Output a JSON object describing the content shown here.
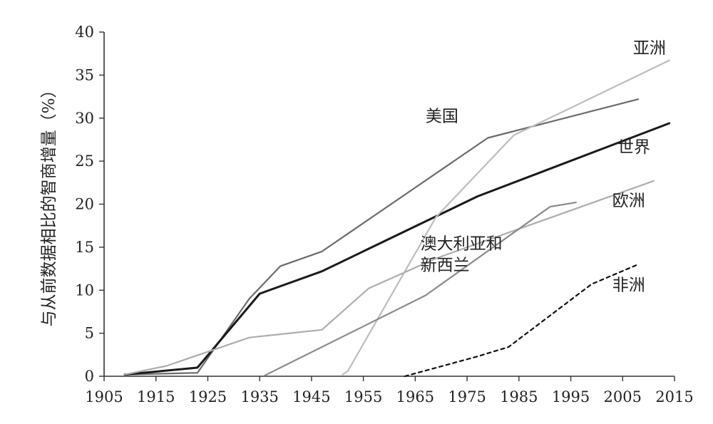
{
  "chart_data": {
    "type": "line",
    "title": "",
    "xlabel": "",
    "ylabel": "与从前数据相比的智商增量（%）",
    "xlim": [
      1905,
      2015
    ],
    "ylim": [
      0,
      40
    ],
    "xticks": [
      1905,
      1915,
      1925,
      1935,
      1945,
      1955,
      1965,
      1975,
      1985,
      1995,
      2005,
      2015
    ],
    "yticks": [
      0,
      5,
      10,
      15,
      20,
      25,
      30,
      35,
      40
    ],
    "grid": false,
    "legend": "inline-labels",
    "series": [
      {
        "name": "美国",
        "label_lines": [
          "美国"
        ],
        "color": "#6b6b6b",
        "width": 2.2,
        "dash": "",
        "label_at": [
          1967,
          29.6
        ],
        "points": [
          [
            1909,
            0.2
          ],
          [
            1923,
            0.4
          ],
          [
            1933,
            9.0
          ],
          [
            1939,
            12.8
          ],
          [
            1947,
            14.5
          ],
          [
            1979,
            27.7
          ],
          [
            2008,
            32.2
          ]
        ]
      },
      {
        "name": "世界",
        "label_lines": [
          "世界"
        ],
        "color": "#1a1a1a",
        "width": 3.0,
        "dash": "",
        "label_at": [
          2004,
          26.0
        ],
        "points": [
          [
            1909,
            0.2
          ],
          [
            1923,
            1.0
          ],
          [
            1935,
            9.6
          ],
          [
            1947,
            12.2
          ],
          [
            1977,
            20.9
          ],
          [
            2014,
            29.4
          ]
        ]
      },
      {
        "name": "亚洲",
        "label_lines": [
          "亚洲"
        ],
        "color": "#bdbdbd",
        "width": 2.2,
        "dash": "",
        "label_at": [
          2007,
          37.5
        ],
        "points": [
          [
            1951,
            0.2
          ],
          [
            1952,
            0.6
          ],
          [
            1969,
            18.5
          ],
          [
            1984,
            28.0
          ],
          [
            2014,
            36.7
          ]
        ]
      },
      {
        "name": "欧洲",
        "label_lines": [
          "欧洲"
        ],
        "color": "#adadad",
        "width": 2.2,
        "dash": "",
        "label_at": [
          2003,
          19.8
        ],
        "points": [
          [
            1909,
            0.2
          ],
          [
            1917,
            1.2
          ],
          [
            1933,
            4.5
          ],
          [
            1947,
            5.4
          ],
          [
            1956,
            10.2
          ],
          [
            1969,
            13.7
          ],
          [
            2011,
            22.7
          ]
        ]
      },
      {
        "name": "澳大利亚和新西兰",
        "label_lines": [
          "澳大利亚和",
          "新西兰"
        ],
        "color": "#8a8a8a",
        "width": 2.2,
        "dash": "",
        "label_at": [
          1966,
          14.8
        ],
        "points": [
          [
            1936,
            0.1
          ],
          [
            1967,
            9.4
          ],
          [
            1991,
            19.7
          ],
          [
            1996,
            20.2
          ]
        ]
      },
      {
        "name": "非洲",
        "label_lines": [
          "非洲"
        ],
        "color": "#111111",
        "width": 2.2,
        "dash": "5,5",
        "label_at": [
          2003,
          10.0
        ],
        "points": [
          [
            1963,
            0.0
          ],
          [
            1977,
            2.3
          ],
          [
            1983,
            3.4
          ],
          [
            1999,
            10.7
          ],
          [
            2008,
            13.0
          ]
        ]
      }
    ]
  }
}
